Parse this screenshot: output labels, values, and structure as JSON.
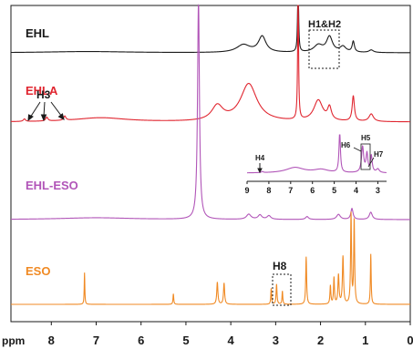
{
  "chart_data": {
    "type": "line",
    "title": "",
    "xlabel": "ppm",
    "ylabel": "",
    "x_axis": {
      "range": [
        0,
        8.9
      ],
      "reversed": true,
      "ticks": [
        8,
        7,
        6,
        5,
        4,
        3,
        2,
        1,
        0
      ],
      "tick_labels": [
        "8",
        "7",
        "6",
        "5",
        "4",
        "3",
        "2",
        "1",
        "0"
      ]
    },
    "grid": false,
    "legend": "none",
    "colors": {
      "EHL": "#1a1a1a",
      "EHLA": "#e0252f",
      "EHL-ESO": "#b155b8",
      "ESO": "#f08a24",
      "text_dark": "#1a1a1a"
    },
    "series": [
      {
        "name": "EHL",
        "baseline": 0,
        "peaks": [
          {
            "ppm": 7.2,
            "height": 0.05,
            "width": 1.2
          },
          {
            "ppm": 3.72,
            "height": 0.3,
            "width": 0.18
          },
          {
            "ppm": 3.3,
            "height": 0.62,
            "width": 0.1
          },
          {
            "ppm": 2.5,
            "height": 3.2,
            "width": 0.012
          },
          {
            "ppm": 2.05,
            "height": 0.28,
            "width": 0.12
          },
          {
            "ppm": 1.8,
            "height": 0.6,
            "width": 0.08
          },
          {
            "ppm": 1.5,
            "height": 0.22,
            "width": 0.08
          },
          {
            "ppm": 1.27,
            "height": 0.42,
            "width": 0.03
          },
          {
            "ppm": 0.87,
            "height": 0.1,
            "width": 0.06
          }
        ]
      },
      {
        "name": "EHLA",
        "baseline": 0,
        "peaks": [
          {
            "ppm": 8.6,
            "height": 0.06,
            "width": 0.03
          },
          {
            "ppm": 8.1,
            "height": 0.09,
            "width": 0.03
          },
          {
            "ppm": 7.7,
            "height": 0.1,
            "width": 0.03
          },
          {
            "ppm": 6.9,
            "height": 0.1,
            "width": 0.7
          },
          {
            "ppm": 4.3,
            "height": 0.35,
            "width": 0.15
          },
          {
            "ppm": 3.6,
            "height": 0.9,
            "width": 0.22
          },
          {
            "ppm": 2.5,
            "height": 3.2,
            "width": 0.012
          },
          {
            "ppm": 2.05,
            "height": 0.5,
            "width": 0.12
          },
          {
            "ppm": 1.8,
            "height": 0.3,
            "width": 0.05
          },
          {
            "ppm": 1.27,
            "height": 0.6,
            "width": 0.03
          },
          {
            "ppm": 0.87,
            "height": 0.18,
            "width": 0.06
          }
        ]
      },
      {
        "name": "EHL-ESO",
        "baseline": 0,
        "peaks": [
          {
            "ppm": 7.0,
            "height": 0.05,
            "width": 1.0
          },
          {
            "ppm": 4.72,
            "height": 6.0,
            "width": 0.025
          },
          {
            "ppm": 3.6,
            "height": 0.14,
            "width": 0.06
          },
          {
            "ppm": 3.35,
            "height": 0.12,
            "width": 0.05
          },
          {
            "ppm": 3.15,
            "height": 0.1,
            "width": 0.05
          },
          {
            "ppm": 2.3,
            "height": 0.08,
            "width": 0.04
          },
          {
            "ppm": 1.6,
            "height": 0.14,
            "width": 0.05
          },
          {
            "ppm": 1.3,
            "height": 0.3,
            "width": 0.03
          },
          {
            "ppm": 0.88,
            "height": 0.2,
            "width": 0.04
          }
        ]
      },
      {
        "name": "ESO",
        "baseline": 0,
        "peaks": [
          {
            "ppm": 7.26,
            "height": 0.6,
            "width": 0.008
          },
          {
            "ppm": 5.28,
            "height": 0.2,
            "width": 0.01
          },
          {
            "ppm": 4.3,
            "height": 0.42,
            "width": 0.015
          },
          {
            "ppm": 4.15,
            "height": 0.4,
            "width": 0.015
          },
          {
            "ppm": 3.1,
            "height": 0.3,
            "width": 0.01
          },
          {
            "ppm": 2.98,
            "height": 0.38,
            "width": 0.012
          },
          {
            "ppm": 2.85,
            "height": 0.25,
            "width": 0.01
          },
          {
            "ppm": 2.32,
            "height": 0.9,
            "width": 0.012
          },
          {
            "ppm": 1.78,
            "height": 0.35,
            "width": 0.012
          },
          {
            "ppm": 1.7,
            "height": 0.5,
            "width": 0.012
          },
          {
            "ppm": 1.6,
            "height": 0.55,
            "width": 0.015
          },
          {
            "ppm": 1.5,
            "height": 0.9,
            "width": 0.015
          },
          {
            "ppm": 1.32,
            "height": 1.7,
            "width": 0.012
          },
          {
            "ppm": 1.25,
            "height": 1.6,
            "width": 0.012
          },
          {
            "ppm": 0.88,
            "height": 0.95,
            "width": 0.01
          }
        ]
      }
    ],
    "inset": {
      "series": "EHL-ESO",
      "x_range": [
        2.6,
        9
      ],
      "ticks": [
        9,
        8,
        7,
        6,
        5,
        4,
        3
      ],
      "tick_labels": [
        "9",
        "8",
        "7",
        "6",
        "5",
        "4",
        "3"
      ],
      "peaks": [
        {
          "ppm": 8.3,
          "height": 0.06,
          "width": 0.05
        },
        {
          "ppm": 6.8,
          "height": 0.3,
          "width": 0.5
        },
        {
          "ppm": 5.6,
          "height": 0.18,
          "width": 0.4
        },
        {
          "ppm": 4.75,
          "height": 2.2,
          "width": 0.04
        },
        {
          "ppm": 3.7,
          "height": 1.4,
          "width": 0.06
        },
        {
          "ppm": 3.5,
          "height": 1.0,
          "width": 0.05
        },
        {
          "ppm": 3.3,
          "height": 0.9,
          "width": 0.05
        },
        {
          "ppm": 3.0,
          "height": 0.2,
          "width": 0.08
        }
      ]
    },
    "annotations": [
      {
        "label": "H1&H2",
        "series": "EHL",
        "box_ppm": [
          1.85,
          2.65
        ]
      },
      {
        "label": "H3",
        "series": "EHLA",
        "arrow_ppm": [
          8.6,
          8.1,
          7.7
        ]
      },
      {
        "label": "H8",
        "series": "ESO",
        "box_ppm": [
          2.75,
          3.2
        ]
      },
      {
        "label": "H4",
        "series": "inset",
        "arrow_ppm": 8.3
      },
      {
        "label": "H5",
        "series": "inset",
        "box_ppm": [
          3.3,
          3.8
        ]
      },
      {
        "label": "H6",
        "series": "inset",
        "arrow_ppm": 3.7
      },
      {
        "label": "H7",
        "series": "inset",
        "arrow_ppm": 3.2
      }
    ]
  }
}
